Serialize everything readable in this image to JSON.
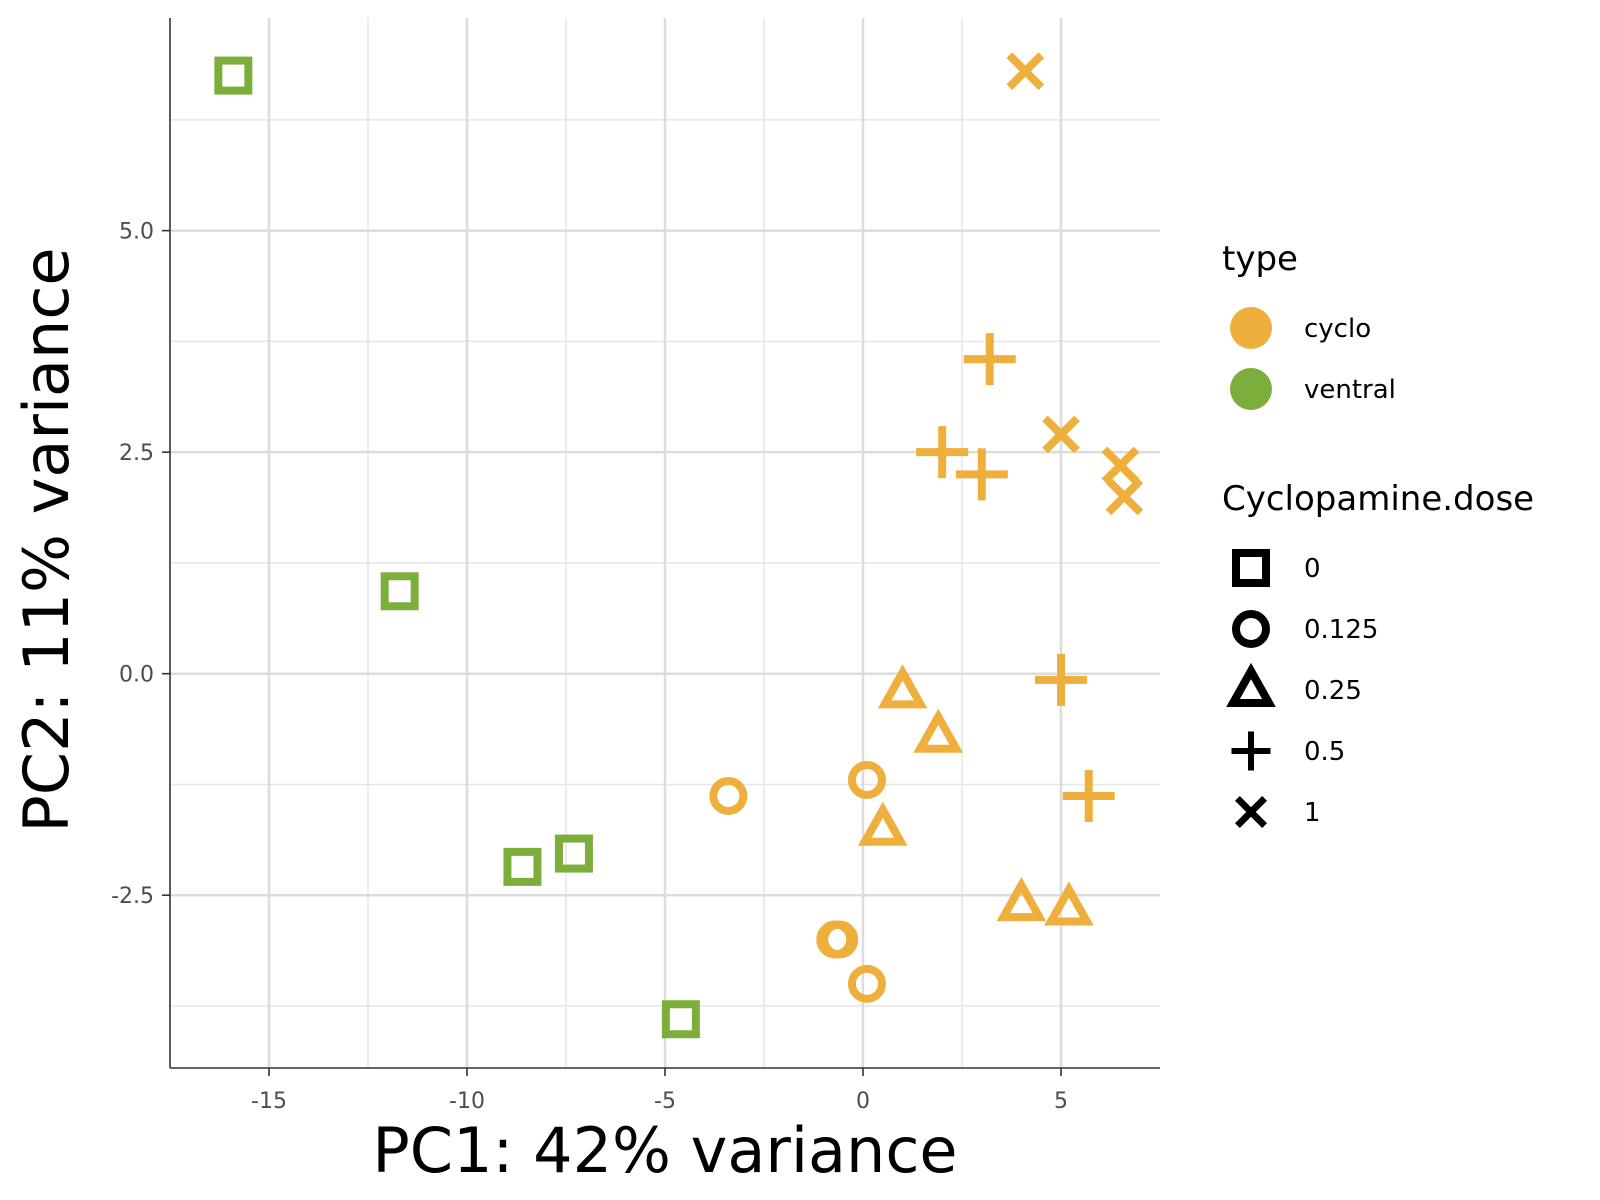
{
  "chart_data": {
    "type": "scatter",
    "xlabel": "PC1: 42% variance",
    "ylabel": "PC2: 11% variance",
    "xlim": [
      -17.5,
      7.5
    ],
    "ylim": [
      -4.45,
      7.4
    ],
    "xticks": [
      -15,
      -10,
      -5,
      0,
      5
    ],
    "xtick_labels": [
      "-15",
      "-10",
      "-5",
      "0",
      "5"
    ],
    "yticks": [
      -2.5,
      0.0,
      2.5,
      5.0
    ],
    "ytick_labels": [
      "-2.5",
      "0.0",
      "2.5",
      "5.0"
    ],
    "grid": true,
    "legend_position": "right",
    "colors": {
      "cyclo": "#EEAF3C",
      "ventral": "#7CAE3C"
    },
    "legends": [
      {
        "title": "type",
        "kind": "color",
        "entries": [
          {
            "label": "cyclo",
            "color": "#EEAF3C"
          },
          {
            "label": "ventral",
            "color": "#7CAE3C"
          }
        ]
      },
      {
        "title": "Cyclopamine.dose",
        "kind": "shape",
        "entries": [
          {
            "label": "0",
            "shape": "square"
          },
          {
            "label": "0.125",
            "shape": "circle"
          },
          {
            "label": "0.25",
            "shape": "triangle"
          },
          {
            "label": "0.5",
            "shape": "plus"
          },
          {
            "label": "1",
            "shape": "cross"
          }
        ]
      }
    ],
    "series": [
      {
        "type": "ventral",
        "dose": "0",
        "shape": "square",
        "points": [
          [
            -15.9,
            6.75
          ],
          [
            -11.7,
            0.93
          ],
          [
            -8.6,
            -2.18
          ],
          [
            -7.3,
            -2.03
          ],
          [
            -4.6,
            -3.9
          ]
        ]
      },
      {
        "type": "cyclo",
        "dose": "0.125",
        "shape": "circle",
        "points": [
          [
            -3.4,
            -1.38
          ],
          [
            0.1,
            -1.2
          ],
          [
            -0.7,
            -3.0
          ],
          [
            -0.6,
            -3.0
          ],
          [
            0.1,
            -3.5
          ]
        ]
      },
      {
        "type": "cyclo",
        "dose": "0.25",
        "shape": "triangle",
        "points": [
          [
            1.0,
            -0.2
          ],
          [
            1.9,
            -0.7
          ],
          [
            0.5,
            -1.75
          ],
          [
            4.0,
            -2.6
          ],
          [
            5.2,
            -2.65
          ]
        ]
      },
      {
        "type": "cyclo",
        "dose": "0.5",
        "shape": "plus",
        "points": [
          [
            3.2,
            3.55
          ],
          [
            2.0,
            2.5
          ],
          [
            3.0,
            2.25
          ],
          [
            5.0,
            -0.07
          ],
          [
            5.7,
            -1.38
          ]
        ]
      },
      {
        "type": "cyclo",
        "dose": "1",
        "shape": "cross",
        "points": [
          [
            4.1,
            6.8
          ],
          [
            5.0,
            2.7
          ],
          [
            6.5,
            2.35
          ],
          [
            6.6,
            2.0
          ]
        ]
      }
    ]
  }
}
